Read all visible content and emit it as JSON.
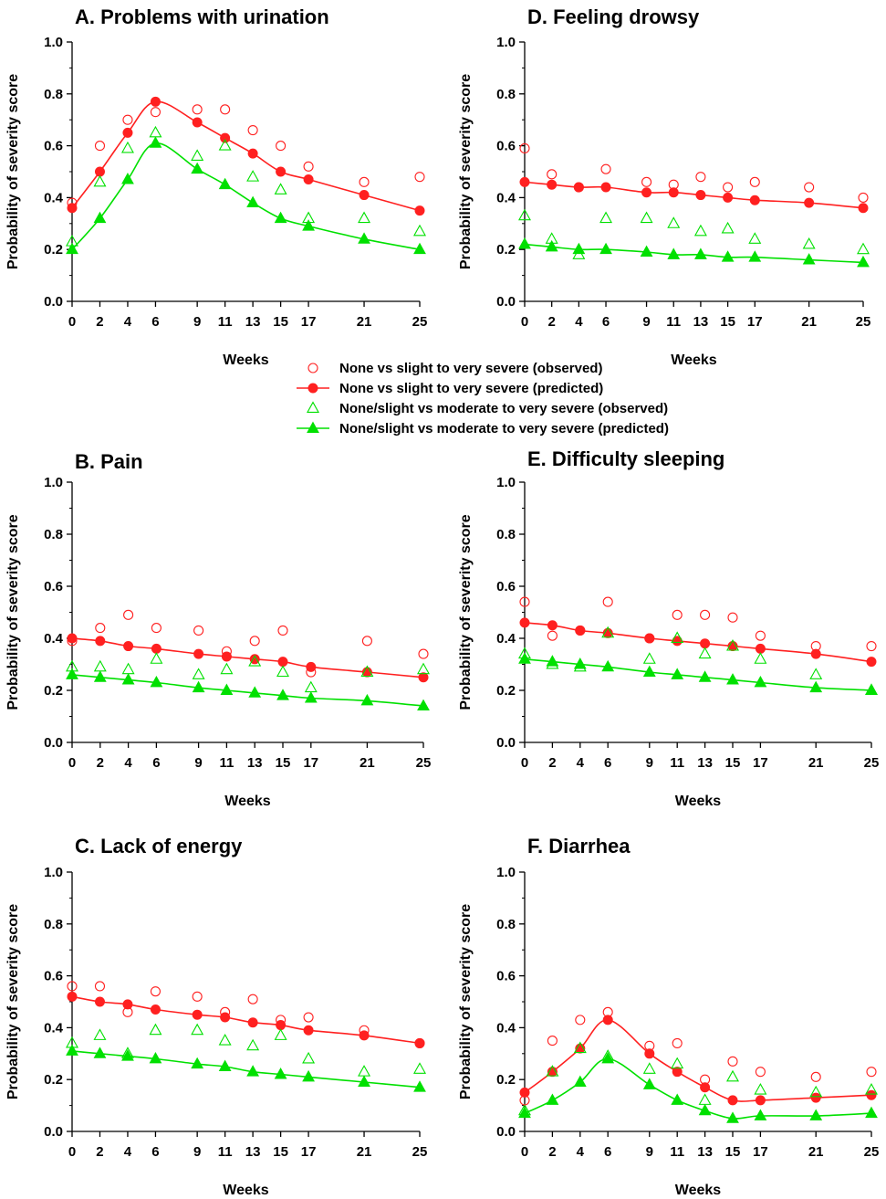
{
  "colors": {
    "red": "#ff2020",
    "green": "#00e000"
  },
  "legend": [
    {
      "label": "None vs slight to very severe (observed)",
      "marker": "open-circle",
      "color": "#ff2020"
    },
    {
      "label": "None vs slight to very severe (predicted)",
      "marker": "filled-circle-line",
      "color": "#ff2020"
    },
    {
      "label": "None/slight vs moderate to very severe (observed)",
      "marker": "open-triangle",
      "color": "#00e000"
    },
    {
      "label": "None/slight vs moderate to very severe (predicted)",
      "marker": "filled-triangle-line",
      "color": "#00e000"
    }
  ],
  "chart_data": [
    {
      "type": "scatter",
      "title": "A. Problems with urination",
      "xlabel": "Weeks",
      "ylabel": "Probability of severity score",
      "x": [
        0,
        2,
        4,
        6,
        9,
        11,
        13,
        15,
        17,
        21,
        25
      ],
      "x_ticks": [
        "0",
        "2",
        "4",
        "6",
        "9",
        "11",
        "13",
        "15",
        "17",
        "21",
        "25"
      ],
      "y_ticks": [
        "0.0",
        "0.2",
        "0.4",
        "0.6",
        "0.8",
        "1.0"
      ],
      "ylim": [
        0,
        1
      ],
      "series": [
        {
          "label": "None vs slight to very severe (observed)",
          "values": [
            0.38,
            0.6,
            0.7,
            0.73,
            0.74,
            0.74,
            0.66,
            0.6,
            0.52,
            0.46,
            0.48
          ]
        },
        {
          "label": "None vs slight to very severe (predicted)",
          "values": [
            0.36,
            0.5,
            0.65,
            0.77,
            0.69,
            0.63,
            0.57,
            0.5,
            0.47,
            0.41,
            0.35
          ]
        },
        {
          "label": "None/slight vs moderate to very severe (observed)",
          "values": [
            0.23,
            0.46,
            0.59,
            0.65,
            0.56,
            0.6,
            0.48,
            0.43,
            0.32,
            0.32,
            0.27
          ]
        },
        {
          "label": "None/slight vs moderate to very severe (predicted)",
          "values": [
            0.2,
            0.32,
            0.47,
            0.61,
            0.51,
            0.45,
            0.38,
            0.32,
            0.29,
            0.24,
            0.2
          ]
        }
      ]
    },
    {
      "type": "scatter",
      "title": "B. Pain",
      "xlabel": "Weeks",
      "ylabel": "Probability of severity score",
      "x": [
        0,
        2,
        4,
        6,
        9,
        11,
        13,
        15,
        17,
        21,
        25
      ],
      "x_ticks": [
        "0",
        "2",
        "4",
        "6",
        "9",
        "11",
        "13",
        "15",
        "17",
        "21",
        "25"
      ],
      "y_ticks": [
        "0.0",
        "0.2",
        "0.4",
        "0.6",
        "0.8",
        "1.0"
      ],
      "ylim": [
        0,
        1
      ],
      "series": [
        {
          "label": "None vs slight to very severe (observed)",
          "values": [
            0.39,
            0.44,
            0.49,
            0.44,
            0.43,
            0.35,
            0.39,
            0.43,
            0.27,
            0.39,
            0.34
          ]
        },
        {
          "label": "None vs slight to very severe (predicted)",
          "values": [
            0.4,
            0.39,
            0.37,
            0.36,
            0.34,
            0.33,
            0.32,
            0.31,
            0.29,
            0.27,
            0.25
          ]
        },
        {
          "label": "None/slight vs moderate to very severe (observed)",
          "values": [
            0.29,
            0.29,
            0.28,
            0.32,
            0.26,
            0.28,
            0.31,
            0.27,
            0.21,
            0.27,
            0.28
          ]
        },
        {
          "label": "None/slight vs moderate to very severe (predicted)",
          "values": [
            0.26,
            0.25,
            0.24,
            0.23,
            0.21,
            0.2,
            0.19,
            0.18,
            0.17,
            0.16,
            0.14
          ]
        }
      ]
    },
    {
      "type": "scatter",
      "title": "C. Lack of energy",
      "xlabel": "Weeks",
      "ylabel": "Probability of severity score",
      "x": [
        0,
        2,
        4,
        6,
        9,
        11,
        13,
        15,
        17,
        21,
        25
      ],
      "x_ticks": [
        "0",
        "2",
        "4",
        "6",
        "9",
        "11",
        "13",
        "15",
        "17",
        "21",
        "25"
      ],
      "y_ticks": [
        "0.0",
        "0.2",
        "0.4",
        "0.6",
        "0.8",
        "1.0"
      ],
      "ylim": [
        0,
        1
      ],
      "series": [
        {
          "label": "None vs slight to very severe (observed)",
          "values": [
            0.56,
            0.56,
            0.46,
            0.54,
            0.52,
            0.46,
            0.51,
            0.43,
            0.44,
            0.39,
            0.34
          ]
        },
        {
          "label": "None vs slight to very severe (predicted)",
          "values": [
            0.52,
            0.5,
            0.49,
            0.47,
            0.45,
            0.44,
            0.42,
            0.41,
            0.39,
            0.37,
            0.34
          ]
        },
        {
          "label": "None/slight vs moderate to very severe (observed)",
          "values": [
            0.34,
            0.37,
            0.3,
            0.39,
            0.39,
            0.35,
            0.33,
            0.37,
            0.28,
            0.23,
            0.24
          ]
        },
        {
          "label": "None/slight vs moderate to very severe (predicted)",
          "values": [
            0.31,
            0.3,
            0.29,
            0.28,
            0.26,
            0.25,
            0.23,
            0.22,
            0.21,
            0.19,
            0.17
          ]
        }
      ]
    },
    {
      "type": "scatter",
      "title": "D. Feeling drowsy",
      "xlabel": "Weeks",
      "ylabel": "Probability of severity score",
      "x": [
        0,
        2,
        4,
        6,
        9,
        11,
        13,
        15,
        17,
        21,
        25
      ],
      "x_ticks": [
        "0",
        "2",
        "4",
        "6",
        "9",
        "11",
        "13",
        "15",
        "17",
        "21",
        "25"
      ],
      "y_ticks": [
        "0.0",
        "0.2",
        "0.4",
        "0.6",
        "0.8",
        "1.0"
      ],
      "ylim": [
        0,
        1
      ],
      "series": [
        {
          "label": "None vs slight to very severe (observed)",
          "values": [
            0.59,
            0.49,
            0.44,
            0.51,
            0.46,
            0.45,
            0.48,
            0.44,
            0.46,
            0.44,
            0.4
          ]
        },
        {
          "label": "None vs slight to very severe (predicted)",
          "values": [
            0.46,
            0.45,
            0.44,
            0.44,
            0.42,
            0.42,
            0.41,
            0.4,
            0.39,
            0.38,
            0.36
          ]
        },
        {
          "label": "None/slight vs moderate to very severe (observed)",
          "values": [
            0.33,
            0.24,
            0.18,
            0.32,
            0.32,
            0.3,
            0.27,
            0.28,
            0.24,
            0.22,
            0.2
          ]
        },
        {
          "label": "None/slight vs moderate to very severe (predicted)",
          "values": [
            0.22,
            0.21,
            0.2,
            0.2,
            0.19,
            0.18,
            0.18,
            0.17,
            0.17,
            0.16,
            0.15
          ]
        }
      ]
    },
    {
      "type": "scatter",
      "title": "E. Difficulty sleeping",
      "xlabel": "Weeks",
      "ylabel": "Probability of severity score",
      "x": [
        0,
        2,
        4,
        6,
        9,
        11,
        13,
        15,
        17,
        21,
        25
      ],
      "x_ticks": [
        "0",
        "2",
        "4",
        "6",
        "9",
        "11",
        "13",
        "15",
        "17",
        "21",
        "25"
      ],
      "y_ticks": [
        "0.0",
        "0.2",
        "0.4",
        "0.6",
        "0.8",
        "1.0"
      ],
      "ylim": [
        0,
        1
      ],
      "series": [
        {
          "label": "None vs slight to very severe (observed)",
          "values": [
            0.54,
            0.41,
            0.43,
            0.54,
            0.4,
            0.49,
            0.49,
            0.48,
            0.41,
            0.37,
            0.37
          ]
        },
        {
          "label": "None vs slight to very severe (predicted)",
          "values": [
            0.46,
            0.45,
            0.43,
            0.42,
            0.4,
            0.39,
            0.38,
            0.37,
            0.36,
            0.34,
            0.31
          ]
        },
        {
          "label": "None/slight vs moderate to very severe (observed)",
          "values": [
            0.34,
            0.3,
            0.29,
            0.42,
            0.32,
            0.4,
            0.34,
            0.37,
            0.32,
            0.26,
            0.2
          ]
        },
        {
          "label": "None/slight vs moderate to very severe (predicted)",
          "values": [
            0.32,
            0.31,
            0.3,
            0.29,
            0.27,
            0.26,
            0.25,
            0.24,
            0.23,
            0.21,
            0.2
          ]
        }
      ]
    },
    {
      "type": "scatter",
      "title": "F. Diarrhea",
      "xlabel": "Weeks",
      "ylabel": "Probability of severity score",
      "x": [
        0,
        2,
        4,
        6,
        9,
        11,
        13,
        15,
        17,
        21,
        25
      ],
      "x_ticks": [
        "0",
        "2",
        "4",
        "6",
        "9",
        "11",
        "13",
        "15",
        "17",
        "21",
        "25"
      ],
      "y_ticks": [
        "0.0",
        "0.2",
        "0.4",
        "0.6",
        "0.8",
        "1.0"
      ],
      "ylim": [
        0,
        1
      ],
      "series": [
        {
          "label": "None vs slight to very severe (observed)",
          "values": [
            0.12,
            0.35,
            0.43,
            0.46,
            0.33,
            0.34,
            0.2,
            0.27,
            0.23,
            0.21,
            0.23
          ]
        },
        {
          "label": "None vs slight to very severe (predicted)",
          "values": [
            0.15,
            0.23,
            0.32,
            0.43,
            0.3,
            0.23,
            0.17,
            0.12,
            0.12,
            0.13,
            0.14
          ]
        },
        {
          "label": "None/slight vs moderate to very severe (observed)",
          "values": [
            0.08,
            0.23,
            0.32,
            0.29,
            0.24,
            0.26,
            0.12,
            0.21,
            0.16,
            0.15,
            0.16
          ]
        },
        {
          "label": "None/slight vs moderate to very severe (predicted)",
          "values": [
            0.07,
            0.12,
            0.19,
            0.28,
            0.18,
            0.12,
            0.08,
            0.05,
            0.06,
            0.06,
            0.07
          ]
        }
      ]
    }
  ]
}
